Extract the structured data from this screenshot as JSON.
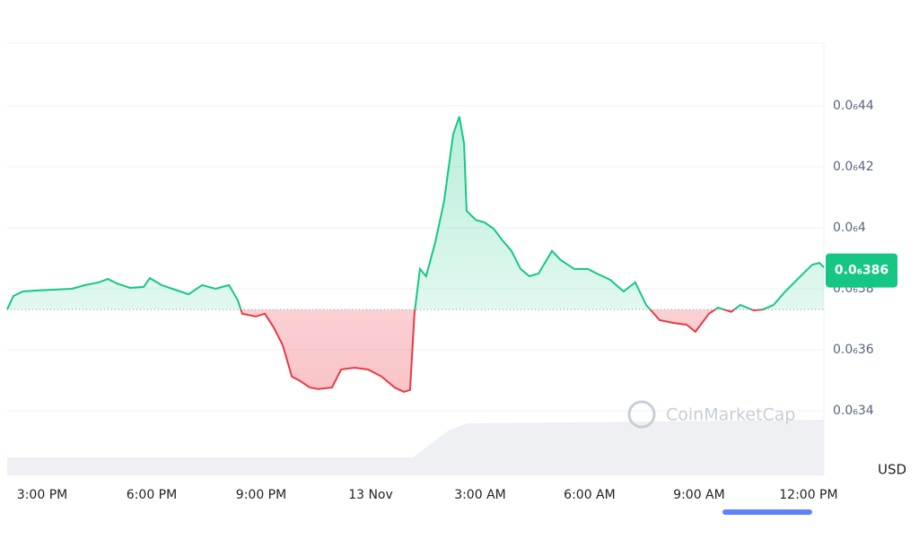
{
  "chart_data": {
    "type": "line",
    "x": [
      14.04,
      14.21,
      14.46,
      14.83,
      15.32,
      15.81,
      16.18,
      16.55,
      16.8,
      17.04,
      17.41,
      17.78,
      17.95,
      18.27,
      18.64,
      19.01,
      19.38,
      19.75,
      20.12,
      20.36,
      20.48,
      20.85,
      21.1,
      21.34,
      21.59,
      21.84,
      22.08,
      22.33,
      22.57,
      22.94,
      23.19,
      23.56,
      23.93,
      24.3,
      24.66,
      24.91,
      25.08,
      25.2,
      25.35,
      25.52,
      25.77,
      26.01,
      26.26,
      26.43,
      26.56,
      26.63,
      26.88,
      27.12,
      27.37,
      27.61,
      27.86,
      28.11,
      28.35,
      28.6,
      28.97,
      29.21,
      29.58,
      29.95,
      30.2,
      30.57,
      30.93,
      31.25,
      31.55,
      31.92,
      32.29,
      32.66,
      32.9,
      33.27,
      33.52,
      33.88,
      34.13,
      34.5,
      34.75,
      35.04,
      35.36,
      35.73,
      36.1,
      36.3,
      36.42
    ],
    "series": [
      {
        "name": "USD",
        "color": "#16c784",
        "down_color": "#ea3943",
        "values": [
          3.732e-07,
          3.776e-07,
          3.791e-07,
          3.794e-07,
          3.797e-07,
          3.8e-07,
          3.812e-07,
          3.821e-07,
          3.832e-07,
          3.818e-07,
          3.803e-07,
          3.806e-07,
          3.835e-07,
          3.812e-07,
          3.797e-07,
          3.782e-07,
          3.812e-07,
          3.8e-07,
          3.812e-07,
          3.762e-07,
          3.718e-07,
          3.709e-07,
          3.718e-07,
          3.674e-07,
          3.615e-07,
          3.512e-07,
          3.497e-07,
          3.476e-07,
          3.471e-07,
          3.476e-07,
          3.535e-07,
          3.541e-07,
          3.535e-07,
          3.512e-07,
          3.476e-07,
          3.462e-07,
          3.468e-07,
          3.718e-07,
          3.865e-07,
          3.841e-07,
          3.953e-07,
          4.085e-07,
          4.306e-07,
          4.365e-07,
          4.276e-07,
          4.056e-07,
          4.026e-07,
          4.018e-07,
          3.997e-07,
          3.959e-07,
          3.924e-07,
          3.865e-07,
          3.841e-07,
          3.85e-07,
          3.924e-07,
          3.894e-07,
          3.865e-07,
          3.865e-07,
          3.85e-07,
          3.829e-07,
          3.791e-07,
          3.821e-07,
          3.747e-07,
          3.697e-07,
          3.688e-07,
          3.682e-07,
          3.659e-07,
          3.718e-07,
          3.738e-07,
          3.724e-07,
          3.747e-07,
          3.729e-07,
          3.732e-07,
          3.747e-07,
          3.791e-07,
          3.835e-07,
          3.879e-07,
          3.885e-07,
          3.87e-07
        ]
      }
    ],
    "baseline": 3.732e-07,
    "current_price": {
      "value": 3.86e-07,
      "label": "0.0₆386"
    },
    "xlim": [
      14.04,
      36.42
    ],
    "xticks": [
      {
        "value": 15,
        "label": "3:00 PM"
      },
      {
        "value": 18,
        "label": "6:00 PM"
      },
      {
        "value": 21,
        "label": "9:00 PM"
      },
      {
        "value": 24,
        "label": "13 Nov"
      },
      {
        "value": 27,
        "label": "3:00 AM"
      },
      {
        "value": 30,
        "label": "6:00 AM"
      },
      {
        "value": 33,
        "label": "9:00 AM"
      },
      {
        "value": 36,
        "label": "12:00 PM"
      }
    ],
    "ylim": [
      3.188e-07,
      4.606e-07
    ],
    "yticks": [
      {
        "value": 3.4e-07,
        "label": "0.0₆34"
      },
      {
        "value": 3.6e-07,
        "label": "0.0₆36"
      },
      {
        "value": 3.8e-07,
        "label": "0.0₆38"
      },
      {
        "value": 4e-07,
        "label": "0.0₆4"
      },
      {
        "value": 4.2e-07,
        "label": "0.0₆42"
      },
      {
        "value": 4.4e-07,
        "label": "0.0₆44"
      }
    ],
    "y_axis_label": "USD",
    "watermark": "CoinMarketCap",
    "grid": true
  }
}
